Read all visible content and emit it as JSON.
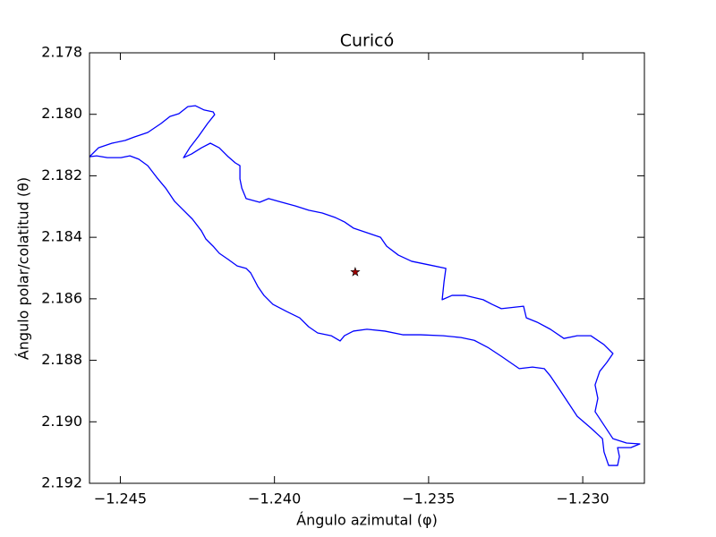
{
  "chart_data": {
    "type": "line",
    "title": "Curicó",
    "xlabel": "Ángulo azimutal (φ)",
    "ylabel": "Ángulo polar/colatitud (θ)",
    "xlim": [
      -1.246,
      -1.228
    ],
    "ylim": [
      2.192,
      2.178
    ],
    "xticks": [
      {
        "value": -1.245,
        "label": "−1.245"
      },
      {
        "value": -1.24,
        "label": "−1.240"
      },
      {
        "value": -1.235,
        "label": "−1.235"
      },
      {
        "value": -1.23,
        "label": "−1.230"
      }
    ],
    "yticks": [
      2.178,
      {
        "value": 2.18,
        "label": "2.180"
      },
      2.182,
      2.184,
      2.186,
      2.188,
      {
        "value": 2.19,
        "label": "2.190"
      },
      2.192
    ],
    "grid": false,
    "series": [
      {
        "type": "line",
        "color": "#0000ff",
        "x": [
          -1.246,
          -1.24571,
          -1.24527,
          -1.24484,
          -1.24455,
          -1.24411,
          -1.24368,
          -1.24339,
          -1.2431,
          -1.24281,
          -1.24257,
          -1.24228,
          -1.24199,
          -1.24194,
          -1.24217,
          -1.24246,
          -1.24275,
          -1.24295,
          -1.24269,
          -1.24237,
          -1.24208,
          -1.24179,
          -1.2415,
          -1.24127,
          -1.24112,
          -1.24112,
          -1.24106,
          -1.24092,
          -1.24048,
          -1.24019,
          -1.23976,
          -1.23932,
          -1.23889,
          -1.23845,
          -1.23802,
          -1.23773,
          -1.23744,
          -1.237,
          -1.23656,
          -1.23636,
          -1.23598,
          -1.23555,
          -1.23497,
          -1.23444,
          -1.2345,
          -1.23456,
          -1.23424,
          -1.23381,
          -1.23323,
          -1.23294,
          -1.23264,
          -1.23192,
          -1.23183,
          -1.23148,
          -1.23105,
          -1.23061,
          -1.23018,
          -1.22974,
          -1.22931,
          -1.22902,
          -1.22922,
          -1.22945,
          -1.2296,
          -1.22951,
          -1.2296,
          -1.22931,
          -1.22902,
          -1.22858,
          -1.22815,
          -1.22844,
          -1.22887,
          -1.22881,
          -1.22887,
          -1.22916,
          -1.22931,
          -1.22936,
          -1.22974,
          -1.23018,
          -1.23047,
          -1.23076,
          -1.23105,
          -1.23125,
          -1.23163,
          -1.23206,
          -1.23235,
          -1.23264,
          -1.23308,
          -1.23352,
          -1.23395,
          -1.23453,
          -1.23526,
          -1.23584,
          -1.23642,
          -1.237,
          -1.23744,
          -1.23773,
          -1.23787,
          -1.23816,
          -1.2386,
          -1.23889,
          -1.23918,
          -1.23961,
          -1.24005,
          -1.24034,
          -1.24054,
          -1.24077,
          -1.24092,
          -1.24121,
          -1.2415,
          -1.24179,
          -1.24199,
          -1.24223,
          -1.24237,
          -1.24266,
          -1.24295,
          -1.24324,
          -1.24353,
          -1.24382,
          -1.24411,
          -1.2444,
          -1.24469,
          -1.24498,
          -1.24542,
          -1.24577,
          -1.246
        ],
        "values": [
          2.18138,
          2.18109,
          2.18094,
          2.18085,
          2.18074,
          2.18059,
          2.1803,
          2.18007,
          2.17998,
          2.17975,
          2.17972,
          2.17986,
          2.17992,
          2.18001,
          2.1803,
          2.18071,
          2.18109,
          2.18141,
          2.18129,
          2.18109,
          2.18094,
          2.18109,
          2.18138,
          2.18158,
          2.18167,
          2.1821,
          2.1824,
          2.18274,
          2.18286,
          2.18274,
          2.18286,
          2.18298,
          2.18312,
          2.18321,
          2.18336,
          2.1835,
          2.1837,
          2.18385,
          2.184,
          2.18429,
          2.18458,
          2.18478,
          2.1849,
          2.18501,
          2.18545,
          2.18603,
          2.18589,
          2.18589,
          2.18603,
          2.18618,
          2.18632,
          2.18624,
          2.18662,
          2.18676,
          2.18699,
          2.18729,
          2.1872,
          2.1872,
          2.18749,
          2.18778,
          2.18807,
          2.18836,
          2.1888,
          2.18924,
          2.18967,
          2.19011,
          2.19055,
          2.19069,
          2.19072,
          2.19084,
          2.19084,
          2.19113,
          2.19142,
          2.19142,
          2.19098,
          2.19055,
          2.1902,
          2.18982,
          2.18938,
          2.18894,
          2.18851,
          2.18827,
          2.18822,
          2.18827,
          2.18807,
          2.18787,
          2.18758,
          2.18735,
          2.18726,
          2.1872,
          2.18717,
          2.18717,
          2.18705,
          2.18699,
          2.18705,
          2.1872,
          2.18737,
          2.1872,
          2.18711,
          2.18691,
          2.18662,
          2.18641,
          2.18618,
          2.18589,
          2.1856,
          2.18516,
          2.18501,
          2.18493,
          2.18472,
          2.18452,
          2.18429,
          2.18405,
          2.18379,
          2.18341,
          2.18312,
          2.18283,
          2.1824,
          2.18205,
          2.18167,
          2.18146,
          2.18135,
          2.18141,
          2.18141,
          2.18135,
          2.18138
        ]
      },
      {
        "type": "scatter",
        "marker": "star",
        "color": "#a00000",
        "x": [
          -1.23738
        ],
        "values": [
          2.18513
        ]
      }
    ]
  }
}
